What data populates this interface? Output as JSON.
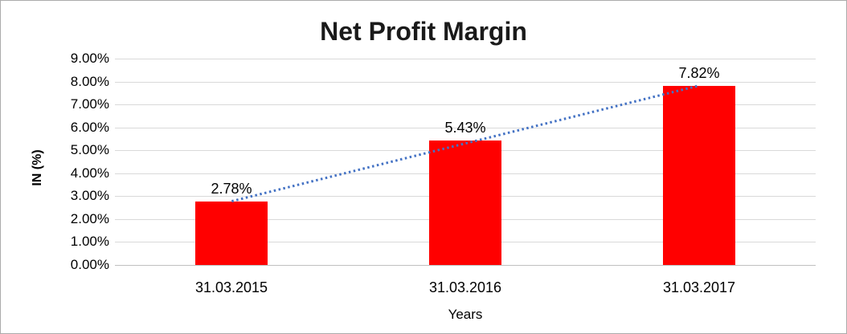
{
  "chart_data": {
    "type": "bar",
    "title": "Net Profit Margin",
    "categories": [
      "31.03.2015",
      "31.03.2016",
      "31.03.2017"
    ],
    "values": [
      2.78,
      5.43,
      7.82
    ],
    "data_labels": [
      "2.78%",
      "5.43%",
      "7.82%"
    ],
    "xlabel": "Years",
    "ylabel": "IN (%)",
    "ylim": [
      0,
      9
    ],
    "ytick_step": 1,
    "ytick_labels": [
      "0.00%",
      "1.00%",
      "2.00%",
      "3.00%",
      "4.00%",
      "5.00%",
      "6.00%",
      "7.00%",
      "8.00%",
      "9.00%"
    ],
    "grid": true,
    "legend": "none",
    "bar_color": "#ff0000",
    "gridline_color": "#d9d9d9",
    "axis_line_color": "#bfbfbf",
    "trendline": {
      "type": "linear",
      "style": "dotted",
      "color": "#4472c4"
    }
  }
}
